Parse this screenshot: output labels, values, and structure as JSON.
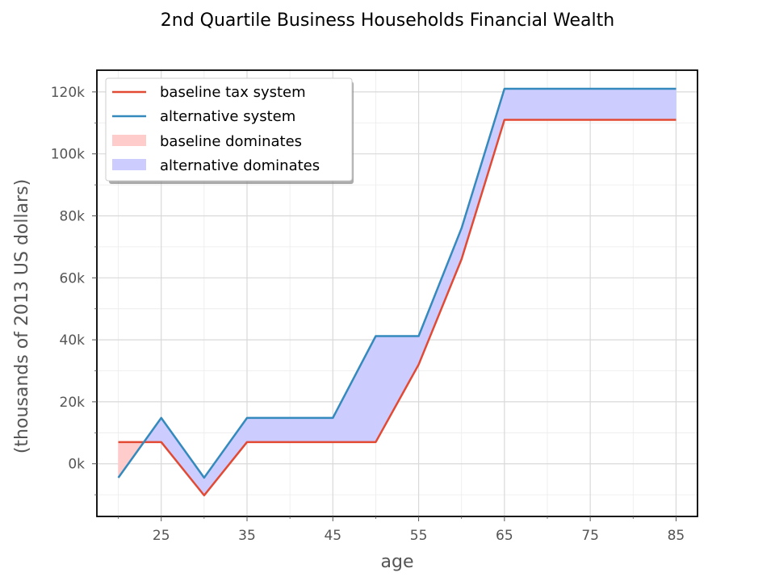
{
  "chart_data": {
    "type": "line",
    "title": "2nd Quartile Business Households Financial Wealth",
    "xlabel": "age",
    "ylabel": "(thousands of 2013 US dollars)",
    "xlim": [
      17.5,
      87.5
    ],
    "ylim": [
      -17000,
      127000
    ],
    "x_ticks": [
      25,
      35,
      45,
      55,
      65,
      75,
      85
    ],
    "x_tick_labels": [
      "25",
      "35",
      "45",
      "55",
      "65",
      "75",
      "85"
    ],
    "y_ticks": [
      0,
      20000,
      40000,
      60000,
      80000,
      100000,
      120000
    ],
    "y_tick_labels": [
      "0k",
      "20k",
      "40k",
      "60k",
      "80k",
      "100k",
      "120k"
    ],
    "grid": true,
    "legend_position": "upper-left",
    "x": [
      20,
      25,
      30,
      35,
      40,
      45,
      50,
      55,
      60,
      65,
      70,
      75,
      80,
      85
    ],
    "series": [
      {
        "name": "baseline tax system",
        "color": "#e24a33",
        "values": [
          7000,
          7000,
          -10200,
          7000,
          7000,
          7000,
          7000,
          32000,
          66000,
          111000,
          111000,
          111000,
          111000,
          111000
        ]
      },
      {
        "name": "alternative system",
        "color": "#348abd",
        "values": [
          -4500,
          14800,
          -4500,
          14800,
          14800,
          14800,
          41200,
          41200,
          76000,
          121000,
          121000,
          121000,
          121000,
          121000
        ]
      }
    ],
    "fills": [
      {
        "name": "baseline dominates",
        "color": "#ffcccc"
      },
      {
        "name": "alternative dominates",
        "color": "#ccccff"
      }
    ]
  }
}
